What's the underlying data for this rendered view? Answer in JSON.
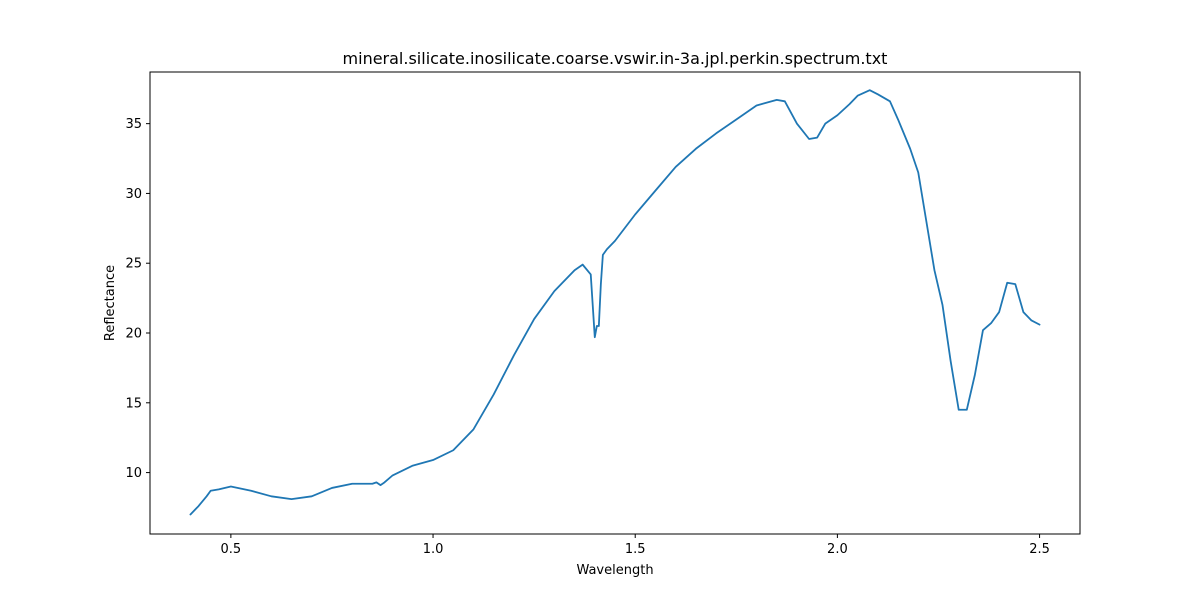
{
  "chart_data": {
    "type": "line",
    "title": "mineral.silicate.inosilicate.coarse.vswir.in-3a.jpl.perkin.spectrum.txt",
    "xlabel": "Wavelength",
    "ylabel": "Reflectance",
    "xlim": [
      0.3,
      2.6
    ],
    "ylim": [
      5.6,
      38.7
    ],
    "xticks": [
      0.5,
      1.0,
      1.5,
      2.0,
      2.5
    ],
    "xtick_labels": [
      "0.5",
      "1.0",
      "1.5",
      "2.0",
      "2.5"
    ],
    "yticks": [
      10,
      15,
      20,
      25,
      30,
      35
    ],
    "ytick_labels": [
      "10",
      "15",
      "20",
      "25",
      "30",
      "35"
    ],
    "grid": false,
    "line_color": "#1f77b4",
    "series": [
      {
        "x": [
          0.4,
          0.42,
          0.44,
          0.45,
          0.47,
          0.5,
          0.55,
          0.6,
          0.65,
          0.7,
          0.75,
          0.8,
          0.85,
          0.86,
          0.87,
          0.88,
          0.9,
          0.95,
          1.0,
          1.05,
          1.1,
          1.15,
          1.2,
          1.25,
          1.3,
          1.35,
          1.37,
          1.39,
          1.4,
          1.405,
          1.41,
          1.415,
          1.42,
          1.43,
          1.45,
          1.5,
          1.55,
          1.6,
          1.65,
          1.7,
          1.75,
          1.8,
          1.85,
          1.87,
          1.9,
          1.93,
          1.95,
          1.97,
          2.0,
          2.03,
          2.05,
          2.08,
          2.1,
          2.13,
          2.15,
          2.18,
          2.2,
          2.22,
          2.24,
          2.26,
          2.28,
          2.3,
          2.32,
          2.34,
          2.36,
          2.38,
          2.4,
          2.42,
          2.44,
          2.46,
          2.48,
          2.5
        ],
        "y": [
          7.0,
          7.6,
          8.3,
          8.7,
          8.8,
          9.0,
          8.7,
          8.3,
          8.1,
          8.3,
          8.9,
          9.2,
          9.2,
          9.3,
          9.1,
          9.3,
          9.8,
          10.5,
          10.9,
          11.6,
          13.1,
          15.6,
          18.4,
          21.0,
          23.0,
          24.5,
          24.9,
          24.2,
          19.7,
          20.5,
          20.5,
          23.5,
          25.6,
          26.0,
          26.6,
          28.5,
          30.2,
          31.9,
          33.2,
          34.3,
          35.3,
          36.3,
          36.7,
          36.6,
          35.0,
          33.9,
          34.0,
          35.0,
          35.6,
          36.4,
          37.0,
          37.4,
          37.1,
          36.6,
          35.3,
          33.2,
          31.5,
          28.0,
          24.5,
          22.0,
          18.0,
          14.5,
          14.5,
          17.0,
          20.2,
          20.7,
          21.5,
          23.6,
          23.5,
          21.5,
          20.9,
          20.6
        ]
      }
    ]
  }
}
